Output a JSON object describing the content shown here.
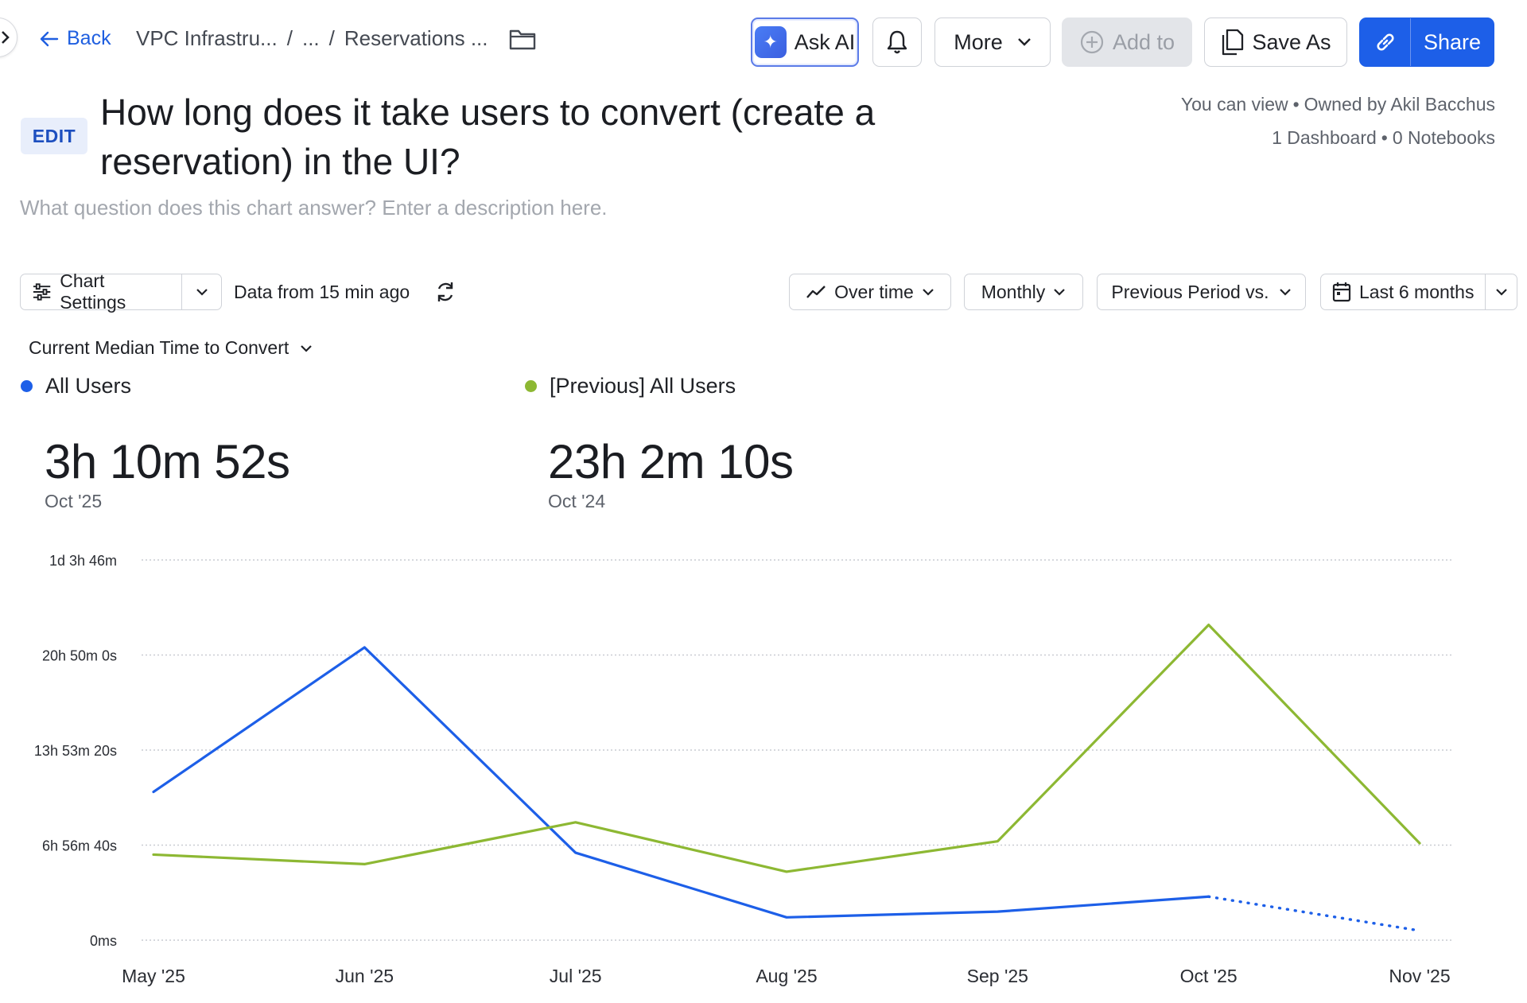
{
  "topbar": {
    "back_label": "Back",
    "breadcrumbs": [
      "VPC Infrastru...",
      "...",
      "Reservations ..."
    ],
    "breadcrumb_sep": "/",
    "ask_ai_label": "Ask AI",
    "more_label": "More",
    "add_to_label": "Add to",
    "save_as_label": "Save As",
    "share_label": "Share"
  },
  "header": {
    "edit_label": "EDIT",
    "title": "How long does it take users to convert (create a reservation) in the UI?",
    "description_placeholder": "What question does this chart answer? Enter a description here.",
    "permission": "You can view",
    "owner": "Owned by Akil Bacchus",
    "dashboards": "1 Dashboard",
    "notebooks": "0 Notebooks",
    "dot": "•"
  },
  "controls": {
    "chart_settings_label": "Chart Settings",
    "data_freshness": "Data from 15 min ago",
    "over_time_label": "Over time",
    "monthly_label": "Monthly",
    "compare_label": "Previous Period vs.",
    "range_label": "Last 6 months",
    "metric_label": "Current Median Time to Convert"
  },
  "kpis": [
    {
      "series": "All Users",
      "value": "3h 10m 52s",
      "period": "Oct '25",
      "color": "#1d5fe8"
    },
    {
      "series": "[Previous] All Users",
      "value": "23h 2m 10s",
      "period": "Oct '24",
      "color": "#8db833"
    }
  ],
  "chart_data": {
    "type": "line",
    "categories": [
      "May '25",
      "Jun '25",
      "Jul '25",
      "Aug '25",
      "Sep '25",
      "Oct '25",
      "Nov '25"
    ],
    "y_unit": "seconds",
    "y_ticks": [
      {
        "value": 0,
        "label": "0ms"
      },
      {
        "value": 25000,
        "label": "6h 56m 40s"
      },
      {
        "value": 50000,
        "label": "13h 53m 20s"
      },
      {
        "value": 75000,
        "label": "20h 50m 0s"
      },
      {
        "value": 100000,
        "label": "1d 3h 46m"
      }
    ],
    "ylim": [
      0,
      100000
    ],
    "grid": true,
    "series": [
      {
        "name": "All Users",
        "color": "#1d5fe8",
        "values": [
          39000,
          77000,
          23000,
          6000,
          7500,
          11452,
          2500
        ],
        "incomplete_from_index": 5
      },
      {
        "name": "[Previous] All Users",
        "color": "#8db833",
        "values": [
          22500,
          20000,
          31000,
          18000,
          26000,
          82930,
          25500
        ],
        "incomplete_from_index": null
      }
    ]
  }
}
